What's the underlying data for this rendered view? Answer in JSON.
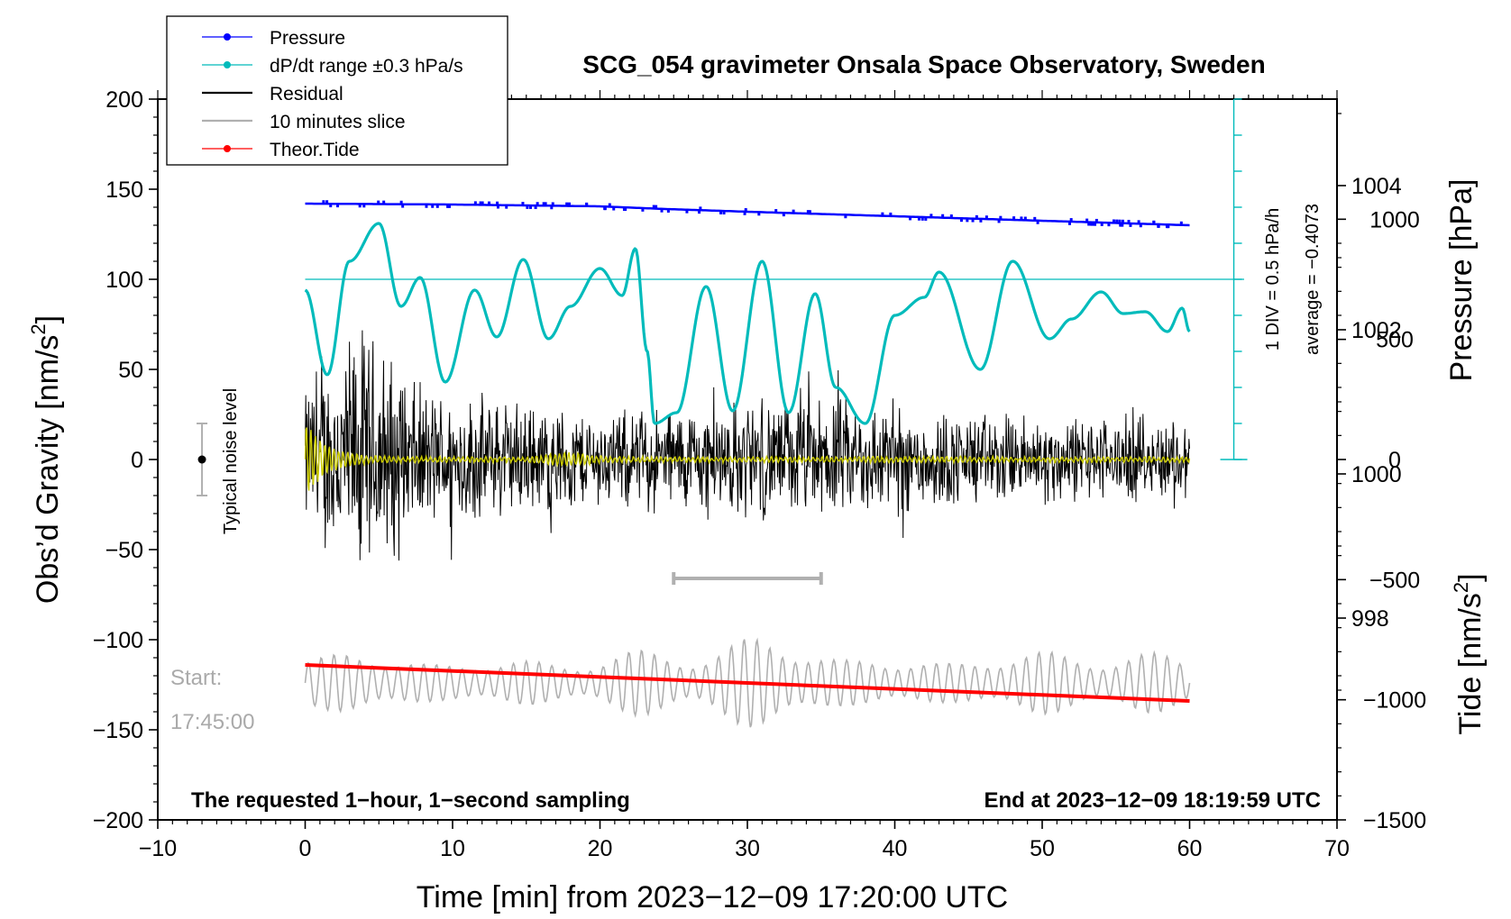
{
  "chart_data": {
    "type": "line",
    "title": "SCG_054 gravimeter Onsala Space Observatory, Sweden",
    "xlabel": "Time [min] from 2023−12−09 17:20:00 UTC",
    "ylabel_left": "Obs’d Gravity [nm/s",
    "ylabel_left_sup": "2",
    "ylabel_left_end": "]",
    "ylabel_right_pressure": "Pressure [hPa]",
    "ylabel_right_tide": "Tide [nm/s",
    "ylabel_right_tide_sup": "2",
    "ylabel_right_tide_end": "]",
    "xlim": [
      -10,
      70
    ],
    "ylim_left": [
      -200,
      200
    ],
    "x_ticks": [
      -10,
      0,
      10,
      20,
      30,
      40,
      50,
      60,
      70
    ],
    "x_tick_labels": [
      "−10",
      "0",
      "10",
      "20",
      "30",
      "40",
      "50",
      "60",
      "70"
    ],
    "y_left_ticks": [
      200,
      150,
      100,
      50,
      0,
      -50,
      -100,
      -150,
      -200
    ],
    "y_left_tick_labels": [
      "200",
      "150",
      "100",
      "50",
      "0",
      "−50",
      "−100",
      "−150",
      "−200"
    ],
    "pressure_axis": {
      "range": [
        995.2,
        1005.2
      ],
      "ticks": [
        1004,
        1002,
        1000,
        998
      ],
      "tick_labels": [
        "1004",
        "1002",
        "1000",
        "998"
      ]
    },
    "tide_axis": {
      "range": [
        -1500,
        1500
      ],
      "visible_min": -1500,
      "visible_max": 1100,
      "ticks": [
        1000,
        500,
        0,
        -500,
        -1000,
        -1500
      ],
      "tick_labels": [
        "1000",
        "500",
        "0",
        "−500",
        "−1000",
        "−1500"
      ]
    },
    "legend": [
      {
        "label": "Pressure",
        "color": "#0000ff",
        "marker": true
      },
      {
        "label": "dP/dt range ±0.3 hPa/s",
        "color": "#00bbbb",
        "marker": true
      },
      {
        "label": "Residual",
        "color": "#000000",
        "marker": false
      },
      {
        "label": "10 minutes slice",
        "color": "#b0b0b0",
        "marker": false
      },
      {
        "label": "Theor.Tide",
        "color": "#ff0000",
        "marker": true
      }
    ],
    "series": [
      {
        "name": "Pressure",
        "color": "#0000ff",
        "x": [
          0,
          10,
          20,
          24.5,
          30,
          40,
          50,
          60
        ],
        "y": [
          142,
          141.5,
          140.5,
          139,
          137.5,
          135,
          132.5,
          130
        ]
      },
      {
        "name": "dP/dt",
        "color": "#00bbbb",
        "x": [
          0,
          1.5,
          3,
          5,
          6.5,
          7.8,
          9.5,
          11.5,
          13,
          14.8,
          16.5,
          18,
          20,
          21.5,
          22.4,
          23.2,
          23.7,
          25.2,
          27.2,
          29,
          31,
          32.8,
          34.6,
          36,
          38,
          40,
          42,
          43,
          45.8,
          48,
          50.5,
          52,
          54,
          55.5,
          57,
          58.5,
          59.5,
          60
        ],
        "y": [
          94,
          47,
          110,
          131,
          85,
          101,
          43,
          94,
          68,
          111,
          67,
          85,
          106,
          91,
          117,
          60,
          20,
          26,
          96,
          27,
          110,
          26,
          92,
          40,
          20,
          80,
          90,
          104,
          50,
          110,
          67,
          78,
          93,
          81,
          82,
          71,
          84,
          71
        ]
      },
      {
        "name": "Residual",
        "color": "#000000",
        "x_range": [
          0,
          60
        ],
        "envelope": [
          [
            0,
            45
          ],
          [
            2,
            70
          ],
          [
            4,
            85
          ],
          [
            8,
            45
          ],
          [
            14,
            38
          ],
          [
            20,
            30
          ],
          [
            30,
            38
          ],
          [
            38,
            38
          ],
          [
            45,
            30
          ],
          [
            52,
            28
          ],
          [
            60,
            25
          ]
        ]
      },
      {
        "name": "Residual smoothed",
        "color": "#cccc00",
        "x_range": [
          0,
          60
        ],
        "amplitude_start": 20
      },
      {
        "name": "10 minutes slice",
        "color": "#b0b0b0",
        "x_range": [
          0,
          60
        ],
        "baseline": -124,
        "max": -77,
        "min": -168
      },
      {
        "name": "Theor.Tide",
        "color": "#ff0000",
        "x": [
          0,
          60
        ],
        "y": [
          -114,
          -134
        ]
      }
    ],
    "pressure_scale_bar": {
      "label_1": "1 DIV = 0.5 hPa/h",
      "label_2": "average = −0.4073",
      "reference_y": 100,
      "bottom_y": 0,
      "top_y": 200,
      "x": 63
    },
    "slice_marker": {
      "x_start": 25,
      "x_end": 35,
      "y": -66
    },
    "noise_level": {
      "label": "Typical noise level",
      "x": -7,
      "y_center": 0,
      "half_range": 20
    },
    "start_label": {
      "line1": "Start:",
      "line2": "17:45:00"
    },
    "footer_left": "The requested 1−hour, 1−second sampling",
    "footer_right": "End at 2023−12−09 18:19:59 UTC"
  }
}
